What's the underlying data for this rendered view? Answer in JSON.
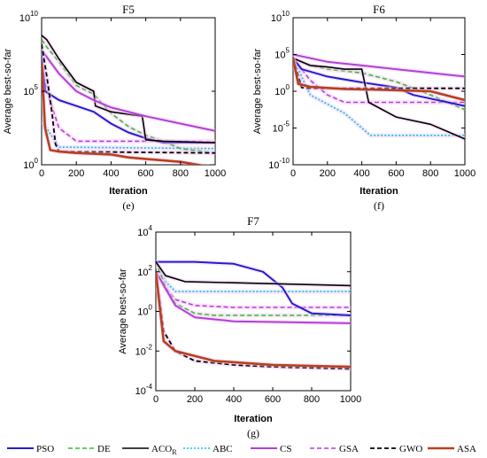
{
  "chart_data": [
    {
      "type": "line",
      "panel": "e",
      "title": "F5",
      "subtitle": "(e)",
      "xlabel": "Iteration",
      "ylabel": "Average best-so-far",
      "yscale": "log",
      "xlim": [
        0,
        1000
      ],
      "ylim_exp": [
        0,
        10
      ],
      "x_ticks": [
        "0",
        "200",
        "400",
        "600",
        "800",
        "1000"
      ],
      "y_ticks": [
        {
          "base": "10",
          "exp": "0"
        },
        {
          "base": "10",
          "exp": "5"
        },
        {
          "base": "10",
          "exp": "10"
        }
      ],
      "series_log10": {
        "PSO": [
          [
            0,
            7.5
          ],
          [
            20,
            5.0
          ],
          [
            100,
            4.4
          ],
          [
            200,
            4.0
          ],
          [
            300,
            3.6
          ],
          [
            400,
            2.8
          ],
          [
            500,
            2.2
          ],
          [
            600,
            1.8
          ],
          [
            700,
            1.5
          ],
          [
            800,
            1.5
          ],
          [
            1000,
            1.5
          ]
        ],
        "DE": [
          [
            0,
            8.5
          ],
          [
            30,
            8.0
          ],
          [
            100,
            7.0
          ],
          [
            200,
            5.4
          ],
          [
            300,
            4.8
          ],
          [
            400,
            3.5
          ],
          [
            500,
            2.6
          ],
          [
            600,
            2.0
          ],
          [
            700,
            1.6
          ],
          [
            800,
            1.1
          ],
          [
            1000,
            0.8
          ]
        ],
        "ACOR": [
          [
            0,
            8.8
          ],
          [
            30,
            8.5
          ],
          [
            100,
            7.2
          ],
          [
            200,
            5.6
          ],
          [
            300,
            5.0
          ],
          [
            310,
            4.0
          ],
          [
            400,
            3.6
          ],
          [
            580,
            3.3
          ],
          [
            600,
            1.7
          ],
          [
            700,
            1.6
          ],
          [
            1000,
            1.5
          ]
        ],
        "ABC": [
          [
            0,
            3.0
          ],
          [
            100,
            1.2
          ],
          [
            1000,
            1.1
          ]
        ],
        "CS": [
          [
            0,
            7.8
          ],
          [
            100,
            6.2
          ],
          [
            200,
            5.0
          ],
          [
            300,
            4.4
          ],
          [
            400,
            3.9
          ],
          [
            600,
            3.3
          ],
          [
            800,
            2.8
          ],
          [
            1000,
            2.3
          ]
        ],
        "GSA": [
          [
            0,
            6.5
          ],
          [
            50,
            4.3
          ],
          [
            100,
            2.5
          ],
          [
            200,
            1.6
          ],
          [
            400,
            1.6
          ],
          [
            1000,
            1.6
          ]
        ],
        "GWO": [
          [
            0,
            8.2
          ],
          [
            30,
            6.0
          ],
          [
            60,
            3.5
          ],
          [
            80,
            1.4
          ],
          [
            100,
            0.9
          ],
          [
            1000,
            0.8
          ]
        ],
        "ASA": [
          [
            0,
            7.0
          ],
          [
            20,
            2.5
          ],
          [
            50,
            1.0
          ],
          [
            100,
            0.9
          ],
          [
            200,
            0.8
          ],
          [
            400,
            0.7
          ],
          [
            500,
            0.5
          ],
          [
            600,
            0.4
          ],
          [
            800,
            0.2
          ],
          [
            1000,
            -0.2
          ]
        ]
      }
    },
    {
      "type": "line",
      "panel": "f",
      "title": "F6",
      "subtitle": "(f)",
      "xlabel": "Iteration",
      "ylabel": "Average best-so-far",
      "yscale": "log",
      "xlim": [
        0,
        1000
      ],
      "ylim_exp": [
        -10,
        10
      ],
      "x_ticks": [
        "0",
        "200",
        "400",
        "600",
        "800",
        "1000"
      ],
      "y_ticks": [
        {
          "base": "10",
          "exp": "-10"
        },
        {
          "base": "10",
          "exp": "-5"
        },
        {
          "base": "10",
          "exp": "0"
        },
        {
          "base": "10",
          "exp": "5"
        },
        {
          "base": "10",
          "exp": "10"
        }
      ],
      "series_log10": {
        "PSO": [
          [
            0,
            4.5
          ],
          [
            50,
            3.0
          ],
          [
            200,
            2.0
          ],
          [
            400,
            1.2
          ],
          [
            600,
            0.5
          ],
          [
            700,
            -0.5
          ],
          [
            800,
            -1.0
          ],
          [
            1000,
            -2.0
          ]
        ],
        "DE": [
          [
            0,
            4.5
          ],
          [
            100,
            3.5
          ],
          [
            200,
            3.0
          ],
          [
            400,
            2.5
          ],
          [
            600,
            1.3
          ],
          [
            800,
            -0.5
          ],
          [
            1000,
            -2.5
          ]
        ],
        "ACOR": [
          [
            0,
            4.5
          ],
          [
            100,
            3.5
          ],
          [
            200,
            3.3
          ],
          [
            300,
            3.0
          ],
          [
            400,
            3.0
          ],
          [
            440,
            -1.5
          ],
          [
            600,
            -3.5
          ],
          [
            800,
            -4.5
          ],
          [
            1000,
            -6.5
          ]
        ],
        "ABC": [
          [
            0,
            4.5
          ],
          [
            100,
            -0.5
          ],
          [
            300,
            -3.0
          ],
          [
            450,
            -6.0
          ],
          [
            1000,
            -6.0
          ]
        ],
        "CS": [
          [
            0,
            5.0
          ],
          [
            200,
            4.0
          ],
          [
            400,
            3.5
          ],
          [
            600,
            3.0
          ],
          [
            800,
            2.5
          ],
          [
            1000,
            2.0
          ]
        ],
        "GSA": [
          [
            0,
            4.5
          ],
          [
            50,
            3.0
          ],
          [
            100,
            1.5
          ],
          [
            200,
            -0.5
          ],
          [
            300,
            -1.5
          ],
          [
            1000,
            -1.5
          ]
        ],
        "GWO": [
          [
            0,
            4.5
          ],
          [
            50,
            0.5
          ],
          [
            100,
            0.4
          ],
          [
            1000,
            0.4
          ]
        ],
        "ASA": [
          [
            0,
            4.5
          ],
          [
            30,
            1.0
          ],
          [
            100,
            0.6
          ],
          [
            300,
            0.3
          ],
          [
            500,
            0.2
          ],
          [
            800,
            0.0
          ],
          [
            1000,
            -1.2
          ]
        ]
      }
    },
    {
      "type": "line",
      "panel": "g",
      "title": "F7",
      "subtitle": "(g)",
      "xlabel": "Iteration",
      "ylabel": "Average best-so-far",
      "yscale": "log",
      "xlim": [
        0,
        1000
      ],
      "ylim_exp": [
        -4,
        4
      ],
      "x_ticks": [
        "0",
        "200",
        "400",
        "600",
        "800",
        "1000"
      ],
      "y_ticks": [
        {
          "base": "10",
          "exp": "-4"
        },
        {
          "base": "10",
          "exp": "-2"
        },
        {
          "base": "10",
          "exp": "0"
        },
        {
          "base": "10",
          "exp": "2"
        },
        {
          "base": "10",
          "exp": "4"
        }
      ],
      "series_log10": {
        "PSO": [
          [
            0,
            2.5
          ],
          [
            200,
            2.5
          ],
          [
            400,
            2.4
          ],
          [
            550,
            2.0
          ],
          [
            650,
            1.2
          ],
          [
            700,
            0.4
          ],
          [
            800,
            -0.1
          ],
          [
            1000,
            -0.2
          ]
        ],
        "DE": [
          [
            0,
            2.5
          ],
          [
            50,
            1.2
          ],
          [
            100,
            0.4
          ],
          [
            200,
            -0.1
          ],
          [
            300,
            -0.2
          ],
          [
            1000,
            -0.2
          ]
        ],
        "ACOR": [
          [
            0,
            2.5
          ],
          [
            50,
            1.8
          ],
          [
            150,
            1.5
          ],
          [
            1000,
            1.3
          ]
        ],
        "ABC": [
          [
            0,
            2.5
          ],
          [
            50,
            1.5
          ],
          [
            100,
            1.0
          ],
          [
            1000,
            1.0
          ]
        ],
        "CS": [
          [
            0,
            2.0
          ],
          [
            100,
            0.3
          ],
          [
            200,
            -0.3
          ],
          [
            400,
            -0.5
          ],
          [
            1000,
            -0.6
          ]
        ],
        "GSA": [
          [
            0,
            2.5
          ],
          [
            50,
            1.2
          ],
          [
            100,
            0.6
          ],
          [
            200,
            0.3
          ],
          [
            400,
            0.2
          ],
          [
            1000,
            0.2
          ]
        ],
        "GWO": [
          [
            0,
            2.0
          ],
          [
            40,
            -1.0
          ],
          [
            100,
            -2.0
          ],
          [
            200,
            -2.5
          ],
          [
            400,
            -2.7
          ],
          [
            600,
            -2.8
          ],
          [
            1000,
            -2.9
          ]
        ],
        "ASA": [
          [
            0,
            2.0
          ],
          [
            40,
            -1.5
          ],
          [
            100,
            -2.0
          ],
          [
            300,
            -2.5
          ],
          [
            600,
            -2.7
          ],
          [
            1000,
            -2.8
          ]
        ]
      }
    }
  ],
  "legend": [
    {
      "key": "PSO",
      "label": "PSO",
      "sub": "",
      "color": "#1f1fd0",
      "dash": "",
      "width": 2
    },
    {
      "key": "DE",
      "label": "DE",
      "sub": "",
      "color": "#2fbf2f",
      "dash": "5,3",
      "width": 1.6
    },
    {
      "key": "ACOR",
      "label": "ACO",
      "sub": "R",
      "color": "#000000",
      "dash": "",
      "width": 1.6
    },
    {
      "key": "ABC",
      "label": "ABC",
      "sub": "",
      "color": "#00c8e6",
      "dash": "2,2",
      "width": 1.6
    },
    {
      "key": "CS",
      "label": "CS",
      "sub": "",
      "color": "#b040d8",
      "dash": "",
      "width": 2
    },
    {
      "key": "GSA",
      "label": "GSA",
      "sub": "",
      "color": "#b040d8",
      "dash": "5,3",
      "width": 1.6
    },
    {
      "key": "GWO",
      "label": "GWO",
      "sub": "",
      "color": "#000000",
      "dash": "5,3",
      "width": 1.8
    },
    {
      "key": "ASA",
      "label": "ASA",
      "sub": "",
      "color": "#b8401c",
      "dash": "",
      "width": 2.6
    }
  ],
  "colors": {
    "band": "#f7c8f2",
    "axis": "#000000"
  }
}
